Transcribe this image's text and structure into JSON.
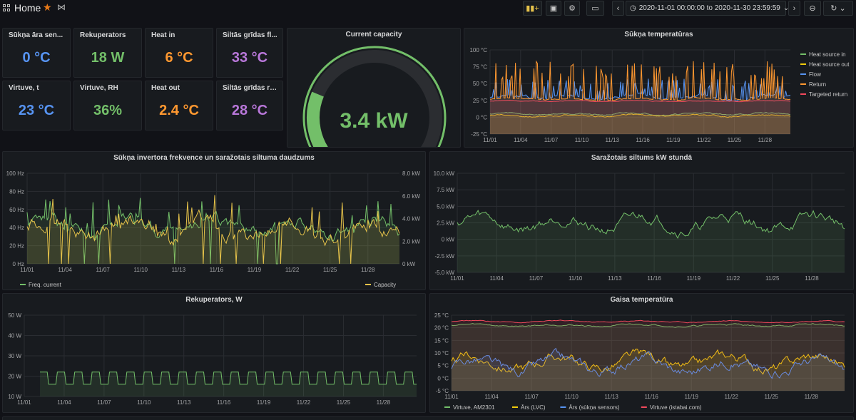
{
  "header": {
    "title": "Home",
    "time_range": "2020-11-01 00:00:00 to 2020-11-30 23:59:59",
    "icons": [
      "grid-icon",
      "star-icon",
      "share-icon",
      "add-panel-icon",
      "save-icon",
      "settings-icon",
      "tv-icon",
      "chevron-left-icon",
      "clock-icon",
      "chevron-down-icon",
      "chevron-right-icon",
      "zoom-out-icon",
      "refresh-icon",
      "chevron-down-icon"
    ]
  },
  "stats": [
    {
      "title": "Sūkņa āra sen...",
      "value": "0 °C",
      "color": "#5794f2"
    },
    {
      "title": "Rekuperators",
      "value": "18 W",
      "color": "#73bf69"
    },
    {
      "title": "Heat in",
      "value": "6 °C",
      "color": "#ff9830"
    },
    {
      "title": "Siltās grīdas fl...",
      "value": "33 °C",
      "color": "#b877d9"
    },
    {
      "title": "Virtuve, t",
      "value": "23 °C",
      "color": "#5794f2"
    },
    {
      "title": "Virtuve, RH",
      "value": "36%",
      "color": "#73bf69"
    },
    {
      "title": "Heat out",
      "value": "2.4 °C",
      "color": "#ff9830"
    },
    {
      "title": "Siltās grīdas re...",
      "value": "28 °C",
      "color": "#b877d9"
    }
  ],
  "gauge": {
    "title": "Current capacity",
    "value": "3.4 kW",
    "fraction": 0.5,
    "color": "#73bf69"
  },
  "dates": [
    "11/01",
    "11/04",
    "11/07",
    "11/10",
    "11/13",
    "11/16",
    "11/19",
    "11/22",
    "11/25",
    "11/28"
  ],
  "chart_data": [
    {
      "type": "line",
      "title": "Sūkņa temperatūras",
      "yticks": [
        "100 °C",
        "75 °C",
        "50 °C",
        "25 °C",
        "0 °C",
        "-25 °C"
      ],
      "ylim": [
        -25,
        100
      ],
      "series": [
        {
          "name": "Heat source in",
          "color": "#73bf69",
          "base": 5,
          "amp": 2
        },
        {
          "name": "Heat source out",
          "color": "#f2cc0c",
          "base": 2,
          "amp": 2
        },
        {
          "name": "Flow",
          "color": "#5794f2",
          "base": 30,
          "amp": 4,
          "spikes": 55
        },
        {
          "name": "Return",
          "color": "#ff9830",
          "base": 27,
          "amp": 2,
          "spikes": 80
        },
        {
          "name": "Targeted return",
          "color": "#f2495c",
          "base": 24,
          "amp": 1
        }
      ]
    },
    {
      "type": "line",
      "title": "Sūkņa invertora frekvence un saražotais siltuma daudzums",
      "yticks_left": [
        "100 Hz",
        "80 Hz",
        "60 Hz",
        "40 Hz",
        "20 Hz",
        "0 Hz"
      ],
      "yticks_right": [
        "8.0 kW",
        "6.0 kW",
        "4.0 kW",
        "2.0 kW",
        "0 kW"
      ],
      "ylim": [
        0,
        100
      ],
      "series": [
        {
          "name": "Freq. current",
          "color": "#73bf69",
          "base": 40,
          "amp": 14
        },
        {
          "name": "Capacity",
          "color": "#e5c24a",
          "base": 38,
          "amp": 16
        }
      ]
    },
    {
      "type": "line",
      "title": "Saražotais siltums kW stundā",
      "yticks": [
        "10.0 kW",
        "7.5 kW",
        "5.0 kW",
        "2.5 kW",
        "0 kW",
        "-2.5 kW",
        "-5.0 kW"
      ],
      "ylim": [
        -5,
        10
      ],
      "series": [
        {
          "name": "",
          "color": "#73bf69",
          "base": 2.5,
          "amp": 1.6
        }
      ]
    },
    {
      "type": "line",
      "title": "Rekuperators, W",
      "yticks": [
        "50 W",
        "40 W",
        "30 W",
        "20 W",
        "10 W"
      ],
      "ylim": [
        10,
        50
      ],
      "series": [
        {
          "name": "",
          "color": "#73bf69",
          "base": 20,
          "amp": 2
        }
      ]
    },
    {
      "type": "line",
      "title": "Gaisa temperatūra",
      "yticks": [
        "25 °C",
        "20 °C",
        "15 °C",
        "10 °C",
        "5 °C",
        "0 °C",
        "-5 °C"
      ],
      "ylim": [
        -5,
        25
      ],
      "series": [
        {
          "name": "Virtuve, AM2301",
          "color": "#73bf69",
          "base": 21,
          "amp": 0.6
        },
        {
          "name": "Ārs (LVC)",
          "color": "#f2cc0c",
          "base": 6,
          "amp": 4
        },
        {
          "name": "Ārs (sūkņa sensors)",
          "color": "#5794f2",
          "base": 5,
          "amp": 4
        },
        {
          "name": "Virtuve (istabai.com)",
          "color": "#f2495c",
          "base": 22.5,
          "amp": 0.4
        }
      ]
    }
  ]
}
